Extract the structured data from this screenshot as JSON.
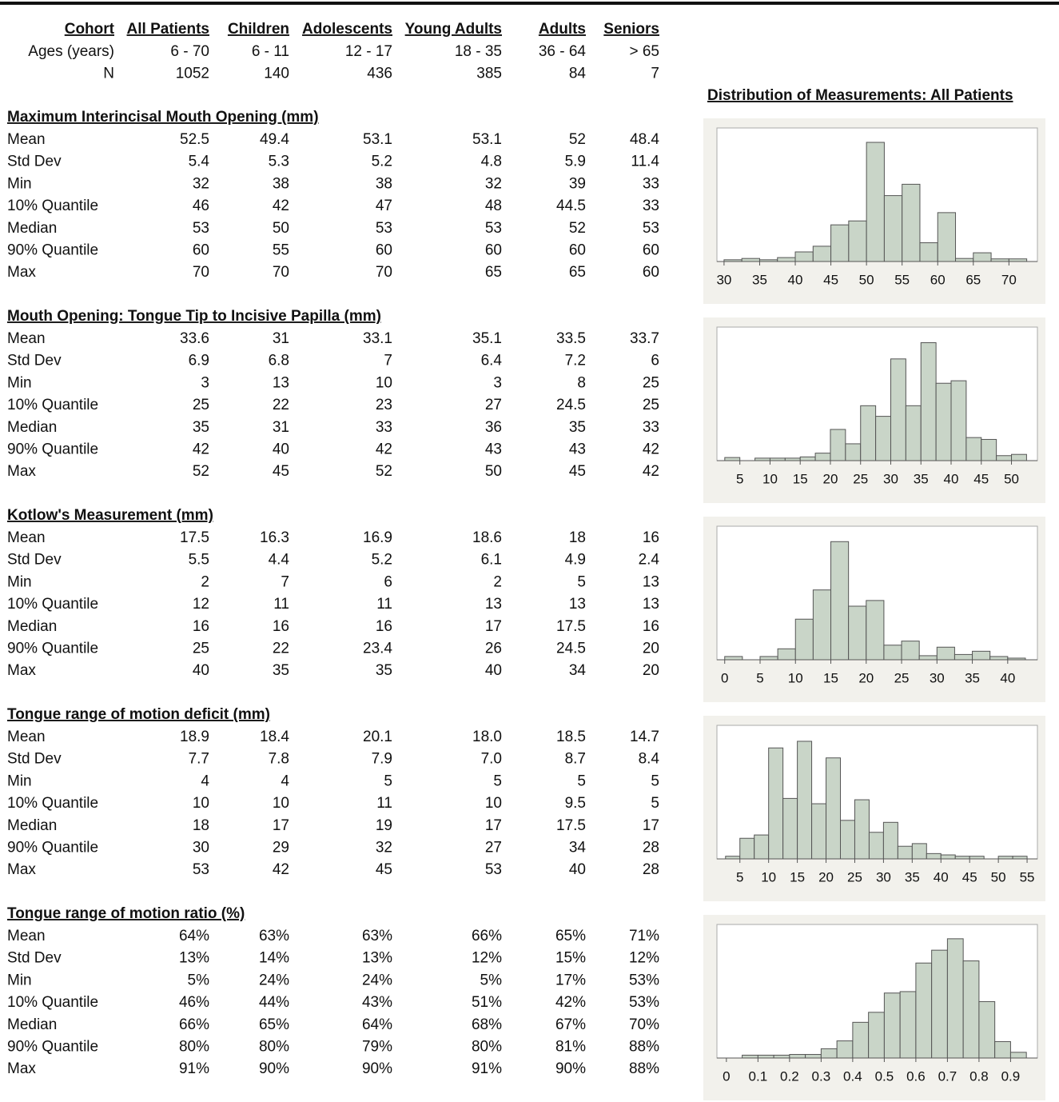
{
  "table": {
    "columns": [
      "Cohort",
      "All Patients",
      "Children",
      "Adolescents",
      "Young Adults",
      "Adults",
      "Seniors"
    ],
    "rows": [
      [
        "Ages (years)",
        "6 - 70",
        "6 - 11",
        "12 - 17",
        "18 - 35",
        "36 - 64",
        "> 65"
      ],
      [
        "N",
        "1052",
        "140",
        "436",
        "385",
        "84",
        "7"
      ]
    ],
    "sections": [
      {
        "title": "Maximum Interincisal Mouth Opening (mm)",
        "rows": [
          [
            "Mean",
            "52.5",
            "49.4",
            "53.1",
            "53.1",
            "52",
            "48.4"
          ],
          [
            "Std Dev",
            "5.4",
            "5.3",
            "5.2",
            "4.8",
            "5.9",
            "11.4"
          ],
          [
            "Min",
            "32",
            "38",
            "38",
            "32",
            "39",
            "33"
          ],
          [
            "10% Quantile",
            "46",
            "42",
            "47",
            "48",
            "44.5",
            "33"
          ],
          [
            "Median",
            "53",
            "50",
            "53",
            "53",
            "52",
            "53"
          ],
          [
            "90% Quantile",
            "60",
            "55",
            "60",
            "60",
            "60",
            "60"
          ],
          [
            "Max",
            "70",
            "70",
            "70",
            "65",
            "65",
            "60"
          ]
        ]
      },
      {
        "title": "Mouth Opening: Tongue Tip to Incisive Papilla (mm)",
        "rows": [
          [
            "Mean",
            "33.6",
            "31",
            "33.1",
            "35.1",
            "33.5",
            "33.7"
          ],
          [
            "Std Dev",
            "6.9",
            "6.8",
            "7",
            "6.4",
            "7.2",
            "6"
          ],
          [
            "Min",
            "3",
            "13",
            "10",
            "3",
            "8",
            "25"
          ],
          [
            "10% Quantile",
            "25",
            "22",
            "23",
            "27",
            "24.5",
            "25"
          ],
          [
            "Median",
            "35",
            "31",
            "33",
            "36",
            "35",
            "33"
          ],
          [
            "90% Quantile",
            "42",
            "40",
            "42",
            "43",
            "43",
            "42"
          ],
          [
            "Max",
            "52",
            "45",
            "52",
            "50",
            "45",
            "42"
          ]
        ]
      },
      {
        "title": "Kotlow's Measurement (mm)",
        "rows": [
          [
            "Mean",
            "17.5",
            "16.3",
            "16.9",
            "18.6",
            "18",
            "16"
          ],
          [
            "Std Dev",
            "5.5",
            "4.4",
            "5.2",
            "6.1",
            "4.9",
            "2.4"
          ],
          [
            "Min",
            "2",
            "7",
            "6",
            "2",
            "5",
            "13"
          ],
          [
            "10% Quantile",
            "12",
            "11",
            "11",
            "13",
            "13",
            "13"
          ],
          [
            "Median",
            "16",
            "16",
            "16",
            "17",
            "17.5",
            "16"
          ],
          [
            "90% Quantile",
            "25",
            "22",
            "23.4",
            "26",
            "24.5",
            "20"
          ],
          [
            "Max",
            "40",
            "35",
            "35",
            "40",
            "34",
            "20"
          ]
        ]
      },
      {
        "title": "Tongue range of motion deficit (mm)",
        "rows": [
          [
            "Mean",
            "18.9",
            "18.4",
            "20.1",
            "18.0",
            "18.5",
            "14.7"
          ],
          [
            "Std Dev",
            "7.7",
            "7.8",
            "7.9",
            "7.0",
            "8.7",
            "8.4"
          ],
          [
            "Min",
            "4",
            "4",
            "5",
            "5",
            "5",
            "5"
          ],
          [
            "10% Quantile",
            "10",
            "10",
            "11",
            "10",
            "9.5",
            "5"
          ],
          [
            "Median",
            "18",
            "17",
            "19",
            "17",
            "17.5",
            "17"
          ],
          [
            "90% Quantile",
            "30",
            "29",
            "32",
            "27",
            "34",
            "28"
          ],
          [
            "Max",
            "53",
            "42",
            "45",
            "53",
            "40",
            "28"
          ]
        ]
      },
      {
        "title": "Tongue range of motion ratio (%)",
        "rows": [
          [
            "Mean",
            "64%",
            "63%",
            "63%",
            "66%",
            "65%",
            "71%"
          ],
          [
            "Std Dev",
            "13%",
            "14%",
            "13%",
            "12%",
            "15%",
            "12%"
          ],
          [
            "Min",
            "5%",
            "24%",
            "24%",
            "5%",
            "17%",
            "53%"
          ],
          [
            "10% Quantile",
            "46%",
            "44%",
            "43%",
            "51%",
            "42%",
            "53%"
          ],
          [
            "Median",
            "66%",
            "65%",
            "64%",
            "68%",
            "67%",
            "70%"
          ],
          [
            "90% Quantile",
            "80%",
            "80%",
            "79%",
            "80%",
            "81%",
            "88%"
          ],
          [
            "Max",
            "91%",
            "90%",
            "90%",
            "91%",
            "90%",
            "88%"
          ]
        ]
      }
    ]
  },
  "histogram_title": "Distribution of Measurements: All Patients",
  "chart_data": [
    {
      "type": "histogram",
      "color": "#c9d5c8",
      "bins": [
        30,
        32.5,
        35,
        37.5,
        40,
        42.5,
        45,
        47.5,
        50,
        52.5,
        55,
        57.5,
        60,
        62.5,
        65,
        67.5,
        70,
        72.5
      ],
      "values": [
        4,
        7,
        4,
        9,
        22,
        35,
        84,
        93,
        273,
        151,
        177,
        43,
        112,
        7,
        20,
        6,
        6
      ],
      "xlim": [
        29,
        74
      ],
      "xticks": [
        30,
        35,
        40,
        45,
        50,
        55,
        60,
        65,
        70
      ],
      "ylim": [
        0,
        306
      ]
    },
    {
      "type": "histogram",
      "color": "#c9d5c8",
      "bins": [
        2.5,
        5,
        7.5,
        10,
        12.5,
        15,
        17.5,
        20,
        22.5,
        25,
        27.5,
        30,
        32.5,
        35,
        37.5,
        40,
        42.5,
        45,
        47.5,
        50,
        52.5
      ],
      "values": [
        5,
        0,
        4,
        4,
        4,
        6,
        12,
        50,
        27,
        88,
        71,
        163,
        88,
        189,
        124,
        128,
        37,
        34,
        8,
        10
      ],
      "xlim": [
        1.2,
        54.3
      ],
      "xticks": [
        5,
        10,
        15,
        20,
        25,
        30,
        35,
        40,
        45,
        50
      ],
      "ylim": [
        0,
        214
      ]
    },
    {
      "type": "histogram",
      "color": "#c9d5c8",
      "bins": [
        0,
        2.5,
        5,
        7.5,
        10,
        12.5,
        15,
        17.5,
        20,
        22.5,
        25,
        27.5,
        30,
        32.5,
        35,
        37.5,
        40,
        42.5
      ],
      "values": [
        8,
        0,
        8,
        27,
        100,
        172,
        291,
        132,
        146,
        36,
        46,
        10,
        31,
        13,
        21,
        8,
        4
      ],
      "xlim": [
        -1.1,
        44.2
      ],
      "xticks": [
        0,
        5,
        10,
        15,
        20,
        25,
        30,
        35,
        40
      ],
      "ylim": [
        0,
        329
      ]
    },
    {
      "type": "histogram",
      "color": "#c9d5c8",
      "bins": [
        2.5,
        5,
        7.5,
        10,
        12.5,
        15,
        17.5,
        20,
        22.5,
        25,
        27.5,
        30,
        32.5,
        35,
        37.5,
        40,
        42.5,
        45,
        47.5,
        50,
        52.5,
        55
      ],
      "values": [
        4,
        31,
        36,
        167,
        91,
        177,
        83,
        152,
        58,
        89,
        40,
        55,
        19,
        23,
        8,
        6,
        4,
        4,
        0,
        4,
        4
      ],
      "xlim": [
        1,
        56.8
      ],
      "xticks": [
        5,
        10,
        15,
        20,
        25,
        30,
        35,
        40,
        45,
        50,
        55
      ],
      "ylim": [
        0,
        201
      ]
    },
    {
      "type": "histogram",
      "color": "#c9d5c8",
      "bins": [
        0.05,
        0.1,
        0.15,
        0.2,
        0.25,
        0.3,
        0.35,
        0.4,
        0.45,
        0.5,
        0.55,
        0.6,
        0.65,
        0.7,
        0.75,
        0.8,
        0.85,
        0.9,
        0.95
      ],
      "values": [
        4,
        4,
        4,
        5,
        5,
        13,
        24,
        50,
        64,
        91,
        93,
        133,
        151,
        167,
        136,
        79,
        23,
        8
      ],
      "xlim": [
        -0.03,
        0.985
      ],
      "xticks": [
        0,
        0.1,
        0.2,
        0.3,
        0.4,
        0.5,
        0.6,
        0.7,
        0.8,
        0.9
      ],
      "ylim": [
        0,
        187
      ]
    }
  ]
}
